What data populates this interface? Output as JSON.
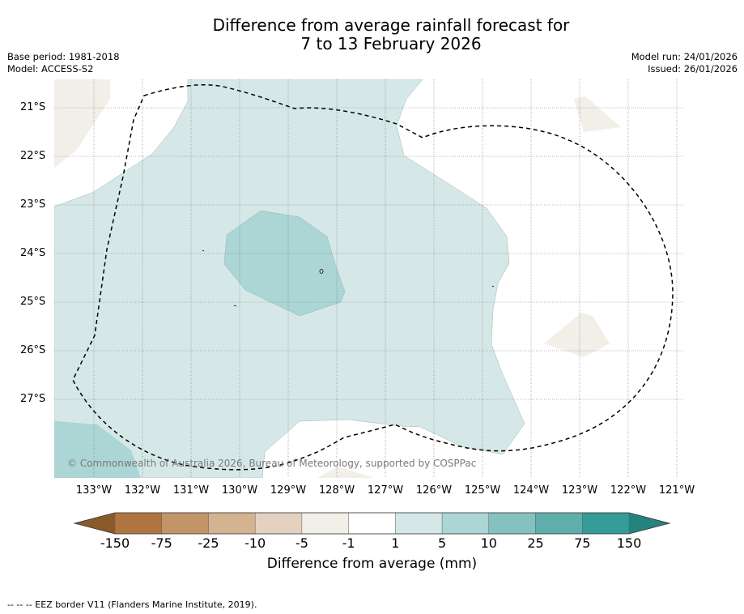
{
  "title_line1": "Difference from average rainfall forecast for",
  "title_line2": "7 to 13 February 2026",
  "base_period": "Base period: 1981-2018",
  "model": "Model: ACCESS-S2",
  "model_run": "Model run: 24/01/2026",
  "issued": "Issued: 26/01/2026",
  "copyright": "© Commonwealth of Australia 2026, Bureau of Meteorology, supported by COSPPac",
  "footer": "--  --  -- EEZ border V11 (Flanders Marine Institute, 2019).",
  "latitudes": [
    "21°S",
    "22°S",
    "23°S",
    "24°S",
    "25°S",
    "26°S",
    "27°S"
  ],
  "longitudes": [
    "133°W",
    "132°W",
    "131°W",
    "130°W",
    "129°W",
    "128°W",
    "127°W",
    "126°W",
    "125°W",
    "124°W",
    "123°W",
    "122°W",
    "121°W"
  ],
  "colorbar": {
    "label": "Difference from average (mm)",
    "ticks": [
      "-150",
      "-75",
      "-25",
      "-10",
      "-5",
      "-1",
      "1",
      "5",
      "10",
      "25",
      "75",
      "150"
    ],
    "colors": [
      "#af7541",
      "#c29567",
      "#d4b391",
      "#e4d1bf",
      "#f2efe9",
      "#ffffff",
      "#d5e8e7",
      "#acd5d5",
      "#84c2c1",
      "#5eaeac",
      "#349b98"
    ],
    "under_color": "#8a5a2b",
    "over_color": "#25827e"
  }
}
